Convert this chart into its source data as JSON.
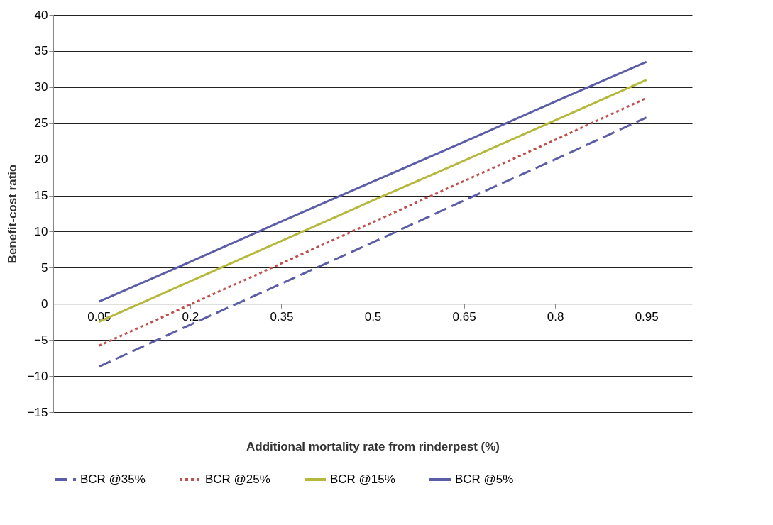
{
  "chart_data": {
    "type": "line",
    "xlabel": "Additional mortality rate from rinderpest (%)",
    "ylabel": "Benefit-cost ratio",
    "categories": [
      "0.05",
      "0.2",
      "0.35",
      "0.5",
      "0.65",
      "0.8",
      "0.95"
    ],
    "series": [
      {
        "name": "BCR @35%",
        "color": "#5b5ea6",
        "line_style": "dashed",
        "values": [
          -8.7,
          -2.9,
          2.8,
          8.5,
          14.3,
          20.0,
          25.8
        ]
      },
      {
        "name": "BCR @25%",
        "color": "#c0504d",
        "line_style": "dotted",
        "values": [
          -5.8,
          -0.1,
          5.6,
          11.3,
          17.0,
          22.7,
          28.5
        ]
      },
      {
        "name": "BCR @15%",
        "color": "#b5b83a",
        "line_style": "solid",
        "values": [
          -2.5,
          3.1,
          8.7,
          14.3,
          19.8,
          25.4,
          31.0
        ]
      },
      {
        "name": "BCR @5%",
        "color": "#5b5ea6",
        "line_style": "solid",
        "values": [
          0.3,
          5.8,
          11.4,
          16.9,
          22.4,
          28.0,
          33.5
        ]
      }
    ],
    "ylim": [
      -15,
      40
    ],
    "yticks": [
      -15,
      -10,
      -5,
      0,
      5,
      10,
      15,
      20,
      25,
      30,
      35,
      40
    ],
    "grid": "y",
    "legend": "bottom",
    "marker": "none"
  }
}
